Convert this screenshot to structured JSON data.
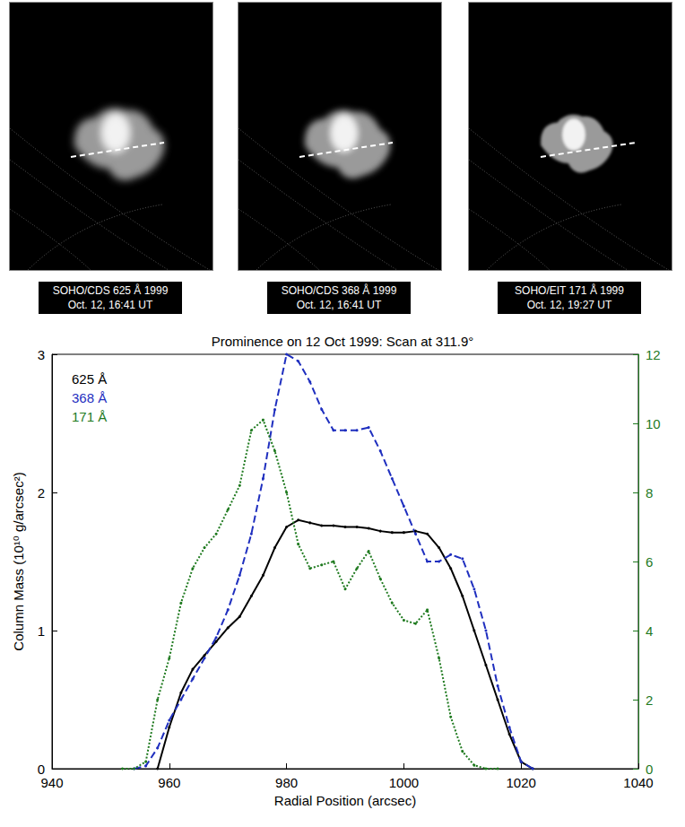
{
  "panels": [
    {
      "caption": [
        "SOHO/CDS 625 Å 1999",
        "Oct. 12, 16:41 UT"
      ]
    },
    {
      "caption": [
        "SOHO/CDS 368 Å 1999",
        "Oct. 12, 16:41 UT"
      ]
    },
    {
      "caption": [
        "SOHO/EIT 171 Å 1999",
        "Oct. 12, 19:27 UT"
      ]
    }
  ],
  "chart_data": {
    "type": "line",
    "title": "Prominence on 12 Oct 1999: Scan at 311.9°",
    "x_label": "Radial Position (arcsec)",
    "y_label": "Column Mass (10¹⁰ g/arcsec²)",
    "xlim": [
      940,
      1040
    ],
    "xticks": [
      940,
      960,
      980,
      1000,
      1020,
      1040
    ],
    "ylim": [
      0,
      3
    ],
    "yticks": [
      0,
      1,
      2,
      3
    ],
    "y2lim": [
      0,
      12
    ],
    "y2ticks": [
      0,
      2,
      4,
      6,
      8,
      10,
      12
    ],
    "grid": false,
    "legend": "upper left",
    "series": [
      {
        "name": "625 Å",
        "color": "#000000",
        "line_style": "solid",
        "marker": "circle",
        "x": [
          958,
          960,
          962,
          964,
          966,
          968,
          970,
          972,
          974,
          976,
          978,
          980,
          982,
          984,
          986,
          988,
          990,
          992,
          994,
          996,
          998,
          1000,
          1002,
          1004,
          1006,
          1008,
          1010,
          1012,
          1014,
          1016,
          1018,
          1020,
          1022
        ],
        "values": [
          0,
          0.3,
          0.55,
          0.72,
          0.82,
          0.92,
          1.02,
          1.1,
          1.25,
          1.4,
          1.6,
          1.75,
          1.8,
          1.78,
          1.76,
          1.76,
          1.75,
          1.75,
          1.74,
          1.72,
          1.71,
          1.71,
          1.72,
          1.7,
          1.6,
          1.45,
          1.25,
          1.0,
          0.75,
          0.5,
          0.25,
          0.05,
          0
        ]
      },
      {
        "name": "368 Å",
        "color": "#1f2fbf",
        "line_style": "dashed",
        "marker": "circle",
        "x": [
          954,
          956,
          958,
          960,
          962,
          964,
          966,
          968,
          970,
          972,
          974,
          976,
          978,
          980,
          982,
          984,
          986,
          988,
          990,
          992,
          994,
          996,
          998,
          1000,
          1002,
          1004,
          1006,
          1008,
          1010,
          1012,
          1014,
          1016,
          1018,
          1020,
          1022
        ],
        "values": [
          0,
          0.02,
          0.15,
          0.35,
          0.5,
          0.65,
          0.8,
          0.95,
          1.15,
          1.4,
          1.7,
          2.1,
          2.6,
          3.0,
          2.95,
          2.8,
          2.6,
          2.45,
          2.45,
          2.45,
          2.47,
          2.3,
          2.1,
          1.9,
          1.7,
          1.5,
          1.5,
          1.55,
          1.52,
          1.3,
          1.0,
          0.6,
          0.3,
          0.05,
          0
        ]
      },
      {
        "name": "171 Å",
        "color": "#1f7a1f",
        "line_style": "dotted",
        "marker": "circle",
        "axis": "y2",
        "x": [
          952,
          954,
          956,
          958,
          960,
          962,
          964,
          966,
          968,
          970,
          972,
          974,
          976,
          978,
          980,
          982,
          984,
          986,
          988,
          990,
          992,
          994,
          996,
          998,
          1000,
          1002,
          1004,
          1006,
          1008,
          1010,
          1012,
          1014,
          1016
        ],
        "values": [
          0,
          0,
          0.2,
          2,
          3.2,
          4.8,
          5.8,
          6.4,
          6.8,
          7.5,
          8.2,
          9.8,
          10.1,
          9.2,
          8.0,
          6.5,
          5.8,
          5.9,
          6.0,
          5.2,
          5.8,
          6.3,
          5.5,
          4.8,
          4.3,
          4.2,
          4.6,
          3.2,
          1.5,
          0.5,
          0.1,
          0,
          0
        ]
      }
    ]
  }
}
